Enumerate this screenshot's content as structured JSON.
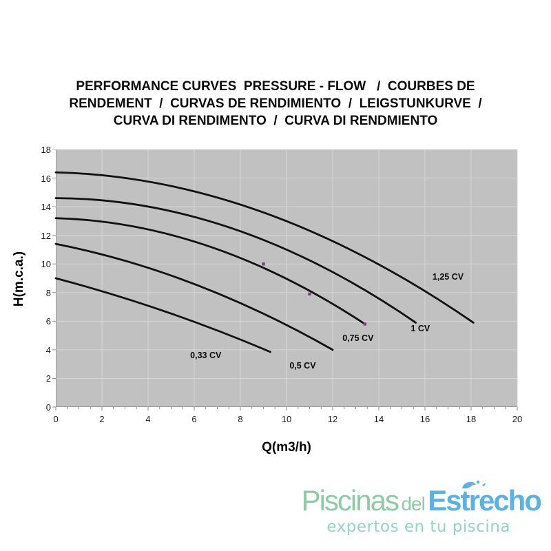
{
  "title": {
    "lines": [
      "PERFORMANCE CURVES  PRESSURE - FLOW   /  COURBES DE",
      "RENDEMENT  /  CURVAS DE RENDIMIENTO  /  LEIGSTUNKURVE  /",
      "CURVA DI RENDIMENTO  /  CURVA DI RENDMIENTO"
    ]
  },
  "chart_data": {
    "type": "line",
    "title": "PERFORMANCE CURVES PRESSURE - FLOW",
    "xlabel": "Q(m3/h)",
    "ylabel": "H(m.c.a.)",
    "xlim": [
      0,
      20
    ],
    "ylim": [
      0,
      18
    ],
    "xticks": [
      0,
      2,
      4,
      6,
      8,
      10,
      12,
      14,
      16,
      18,
      20
    ],
    "yticks": [
      0,
      2,
      4,
      6,
      8,
      10,
      12,
      14,
      16,
      18
    ],
    "x_minor_step": 0.5,
    "grid": true,
    "legend_position": "labels-on-curves",
    "plot_bg": "#c1c1c1",
    "grid_color": "#d6d6d6",
    "axis_color": "#9a9a9a",
    "tick_color": "#8a8a8a",
    "curve_color": "#111111",
    "marker_color": "#8c3a8e",
    "series": [
      {
        "name": "1,25 CV",
        "points": [
          [
            0,
            16.4
          ],
          [
            9.0,
            13.6
          ],
          [
            18.1,
            5.9
          ]
        ],
        "label_pos": [
          17.0,
          9.1
        ]
      },
      {
        "name": "1 CV",
        "points": [
          [
            0,
            14.6
          ],
          [
            7.8,
            12.4
          ],
          [
            15.6,
            5.9
          ]
        ],
        "label_pos": [
          15.8,
          5.5
        ]
      },
      {
        "name": "0,75 CV",
        "points": [
          [
            0,
            13.2
          ],
          [
            6.7,
            11.2
          ],
          [
            13.4,
            5.8
          ]
        ],
        "label_pos": [
          13.1,
          4.8
        ]
      },
      {
        "name": "0,5 CV",
        "points": [
          [
            0,
            11.4
          ],
          [
            6.0,
            8.6
          ],
          [
            12.0,
            4.0
          ]
        ],
        "label_pos": [
          10.7,
          2.9
        ]
      },
      {
        "name": "0,33 CV",
        "points": [
          [
            0,
            9.0
          ],
          [
            4.7,
            6.7
          ],
          [
            9.3,
            3.85
          ]
        ],
        "label_pos": [
          6.5,
          3.6
        ]
      }
    ],
    "markers": [
      [
        9.0,
        10.0
      ],
      [
        11.0,
        7.9
      ],
      [
        13.4,
        5.8
      ]
    ]
  },
  "logo": {
    "part1": "Piscinas",
    "part2": "del",
    "part3": "Estrecho",
    "tagline": "expertos en tu piscina",
    "green": "#8bcba6",
    "blue": "#5bb1e3",
    "tagline_color": "#92d4c7"
  }
}
